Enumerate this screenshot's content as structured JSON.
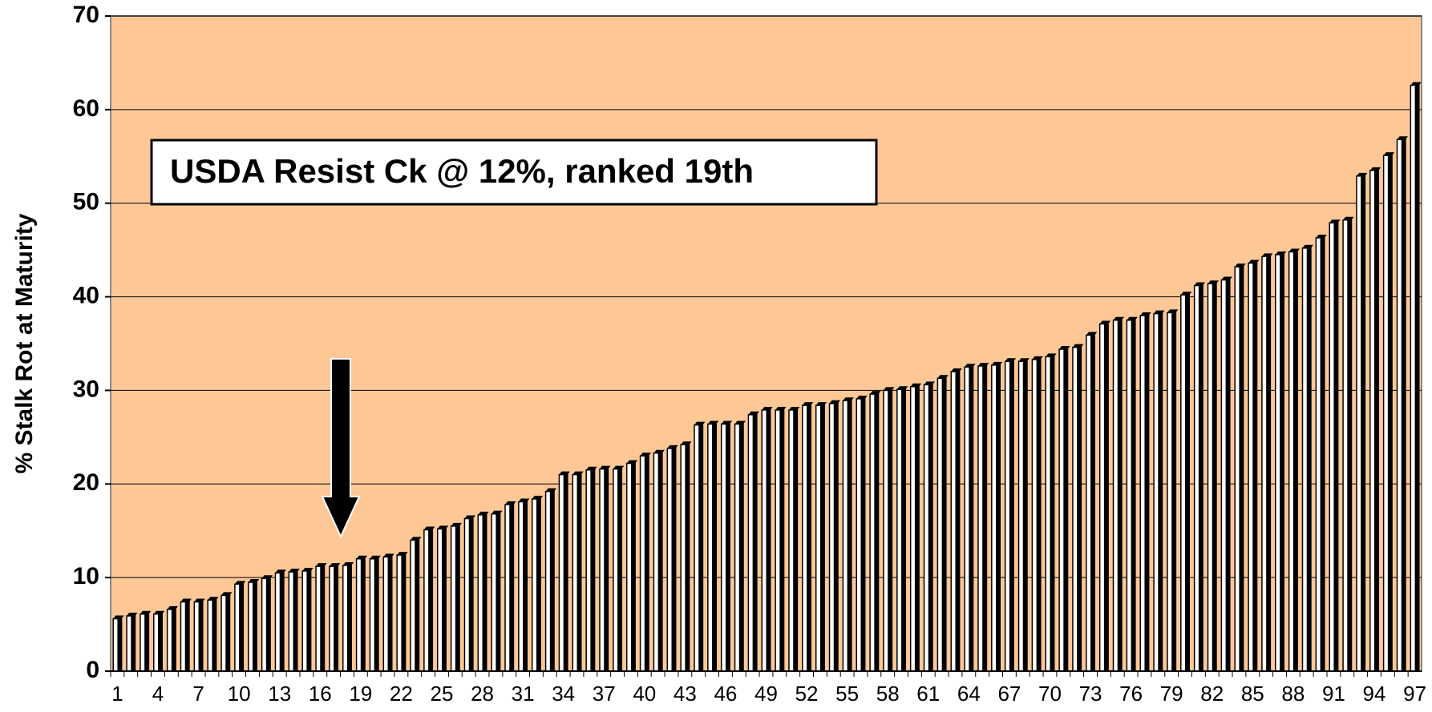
{
  "chart_data": {
    "type": "bar",
    "ylabel": "% Stalk Rot at Maturity",
    "annotation": "USDA Resist Ck @ 12%, ranked 19th",
    "categories": [
      1,
      null,
      null,
      4,
      null,
      null,
      7,
      null,
      null,
      10,
      null,
      null,
      13,
      null,
      null,
      16,
      null,
      null,
      19,
      null,
      null,
      22,
      null,
      null,
      25,
      null,
      null,
      28,
      null,
      null,
      31,
      null,
      null,
      34,
      null,
      null,
      37,
      null,
      null,
      40,
      null,
      null,
      43,
      null,
      null,
      46,
      null,
      null,
      49,
      null,
      null,
      52,
      null,
      null,
      55,
      null,
      null,
      58,
      null,
      null,
      61,
      null,
      null,
      64,
      null,
      null,
      67,
      null,
      null,
      70,
      null,
      null,
      73,
      null,
      null,
      76,
      null,
      null,
      79,
      null,
      null,
      82,
      null,
      null,
      85,
      null,
      null,
      88,
      null,
      null,
      91,
      null,
      null,
      94,
      null,
      null,
      97
    ],
    "values": [
      5.6,
      5.9,
      6.1,
      6.1,
      6.6,
      7.4,
      7.4,
      7.6,
      8.1,
      9.3,
      9.5,
      9.9,
      10.5,
      10.6,
      10.7,
      11.2,
      11.2,
      11.3,
      12.0,
      12.0,
      12.2,
      12.4,
      14.0,
      15.1,
      15.2,
      15.5,
      16.3,
      16.7,
      16.8,
      17.8,
      18.1,
      18.4,
      19.2,
      21.0,
      21.0,
      21.5,
      21.6,
      21.6,
      22.2,
      23.0,
      23.3,
      23.8,
      24.2,
      26.3,
      26.4,
      26.4,
      26.4,
      27.4,
      27.9,
      27.9,
      27.9,
      28.4,
      28.4,
      28.6,
      28.9,
      29.1,
      29.6,
      30.0,
      30.1,
      30.4,
      30.6,
      31.3,
      32.0,
      32.5,
      32.6,
      32.7,
      33.1,
      33.1,
      33.3,
      33.6,
      34.4,
      34.6,
      35.9,
      37.1,
      37.5,
      37.5,
      38.0,
      38.2,
      38.3,
      40.2,
      41.2,
      41.4,
      41.8,
      43.2,
      43.6,
      44.3,
      44.5,
      44.8,
      45.2,
      46.3,
      47.9,
      48.2,
      52.9,
      53.5,
      55.1,
      56.8,
      62.6
    ],
    "color": "#ffffff",
    "edge_color": "#000000",
    "background": "#fdc896",
    "ylim": [
      0,
      70
    ],
    "yticks": [
      0,
      10,
      20,
      30,
      40,
      50,
      60,
      70
    ],
    "grid": true
  }
}
